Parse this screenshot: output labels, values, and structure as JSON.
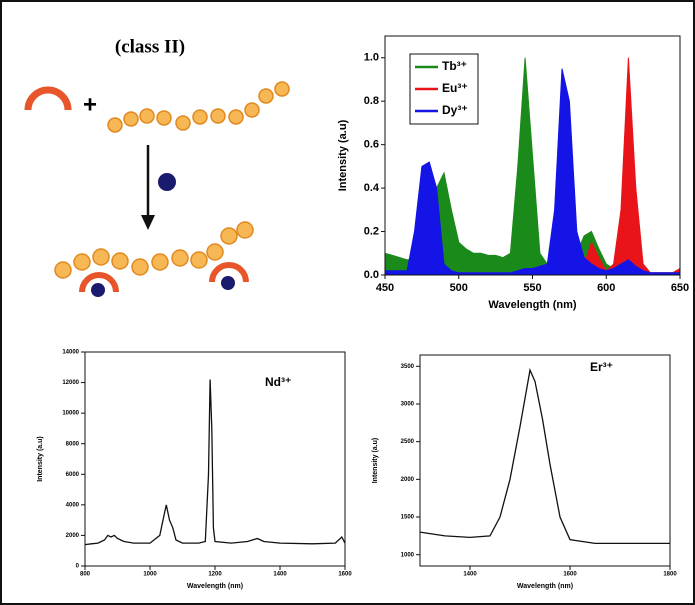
{
  "diagram": {
    "title": "(class II)",
    "operator": "+"
  },
  "chart_data": [
    {
      "type": "area",
      "xlabel": "Wavelength (nm)",
      "ylabel": "Intensity (a.u)",
      "x": [
        450,
        455,
        460,
        465,
        470,
        475,
        480,
        485,
        490,
        495,
        500,
        505,
        510,
        515,
        520,
        525,
        530,
        535,
        540,
        545,
        550,
        555,
        560,
        565,
        570,
        575,
        580,
        585,
        590,
        595,
        600,
        605,
        610,
        615,
        620,
        625,
        630,
        635,
        640,
        645,
        650
      ],
      "series": [
        {
          "name": "Tb³⁺",
          "color": "#1a8a1a",
          "values": [
            0.1,
            0.09,
            0.08,
            0.07,
            0.07,
            0.12,
            0.25,
            0.4,
            0.47,
            0.3,
            0.15,
            0.12,
            0.1,
            0.1,
            0.09,
            0.09,
            0.08,
            0.1,
            0.5,
            1.0,
            0.55,
            0.1,
            0.05,
            0.04,
            0.04,
            0.06,
            0.1,
            0.18,
            0.2,
            0.12,
            0.05,
            0.03,
            0.02,
            0.03,
            0.03,
            0.01,
            0.01,
            0.01,
            0.01,
            0.01,
            0.01
          ]
        },
        {
          "name": "Eu³⁺",
          "color": "#e8141a",
          "values": [
            0,
            0,
            0,
            0,
            0,
            0,
            0,
            0,
            0,
            0,
            0,
            0,
            0,
            0,
            0,
            0,
            0,
            0,
            0,
            0,
            0,
            0,
            0,
            0,
            0,
            0,
            0,
            0.05,
            0.15,
            0.08,
            0.02,
            0.05,
            0.3,
            1.0,
            0.4,
            0.05,
            0.01,
            0.01,
            0.01,
            0.01,
            0.03
          ]
        },
        {
          "name": "Dy³⁺",
          "color": "#1414e6",
          "values": [
            0.02,
            0.02,
            0.02,
            0.02,
            0.2,
            0.5,
            0.52,
            0.4,
            0.05,
            0.02,
            0.01,
            0.01,
            0.01,
            0.01,
            0.01,
            0.01,
            0.01,
            0.01,
            0.02,
            0.03,
            0.03,
            0.04,
            0.05,
            0.3,
            0.95,
            0.8,
            0.2,
            0.08,
            0.05,
            0.03,
            0.02,
            0.03,
            0.05,
            0.07,
            0.04,
            0.02,
            0.01,
            0.01,
            0.01,
            0.01,
            0.01
          ]
        }
      ],
      "xlim": [
        450,
        650
      ],
      "xticks": [
        450,
        500,
        550,
        600,
        650
      ],
      "ylim": [
        0,
        1.1
      ],
      "yticks": [
        {
          "value": 0,
          "label": "0.0"
        },
        0.2,
        0.4,
        0.6,
        0.8,
        {
          "value": 1,
          "label": "1.0"
        }
      ],
      "legend": "upper-left"
    },
    {
      "type": "line",
      "xlabel": "Wavelength (nm)",
      "ylabel": "Intensity (a.u)",
      "annotation": "Nd³⁺",
      "color": "#111111",
      "x": [
        800,
        820,
        840,
        860,
        870,
        880,
        890,
        900,
        920,
        950,
        1000,
        1030,
        1045,
        1050,
        1060,
        1070,
        1080,
        1100,
        1150,
        1170,
        1180,
        1185,
        1190,
        1195,
        1200,
        1250,
        1300,
        1330,
        1350,
        1400,
        1500,
        1570,
        1590,
        1600
      ],
      "values": [
        1400,
        1450,
        1500,
        1700,
        2000,
        1900,
        2000,
        1800,
        1600,
        1500,
        1500,
        2000,
        3500,
        4000,
        3000,
        2500,
        1700,
        1500,
        1500,
        1600,
        6000,
        12200,
        9000,
        2500,
        1600,
        1500,
        1600,
        1800,
        1600,
        1500,
        1450,
        1500,
        1900,
        1500
      ],
      "xlim": [
        800,
        1600
      ],
      "xticks": [
        800,
        1000,
        1200,
        1400,
        1600
      ],
      "ylim": [
        0,
        14000
      ],
      "yticks": [
        0,
        2000,
        4000,
        6000,
        8000,
        10000,
        12000,
        14000
      ]
    },
    {
      "type": "line",
      "xlabel": "Wavelength (nm)",
      "ylabel": "Intensity (a.u)",
      "annotation": "Er³⁺",
      "color": "#111111",
      "x": [
        1300,
        1350,
        1400,
        1440,
        1460,
        1480,
        1500,
        1520,
        1530,
        1545,
        1560,
        1580,
        1600,
        1650,
        1700,
        1750,
        1800
      ],
      "values": [
        1300,
        1250,
        1230,
        1250,
        1500,
        2000,
        2700,
        3450,
        3300,
        2800,
        2200,
        1500,
        1200,
        1150,
        1150,
        1150,
        1150
      ],
      "xlim": [
        1300,
        1800
      ],
      "xticks": [
        1400,
        1600,
        1800
      ],
      "ylim": [
        850,
        3650
      ],
      "yticks": [
        1000,
        1500,
        2000,
        2500,
        3000,
        3500
      ]
    }
  ]
}
